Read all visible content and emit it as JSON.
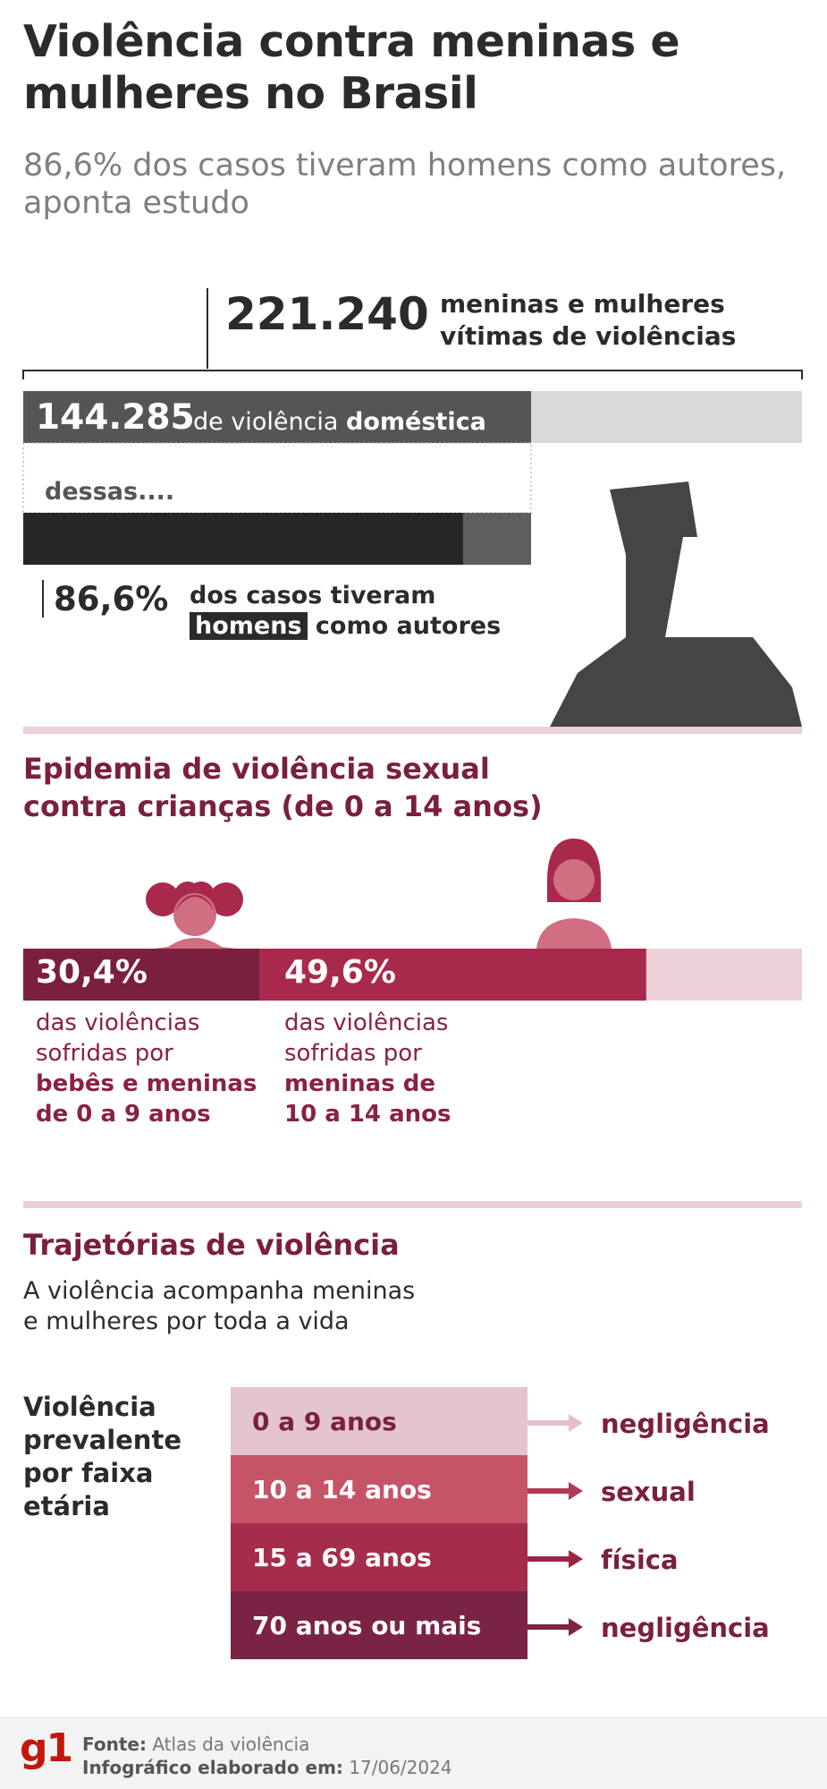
{
  "header": {
    "title": "Violência contra meninas e mulheres no Brasil",
    "subtitle": "86,6% dos casos tiveram homens como autores, aponta estudo"
  },
  "totals": {
    "total_value": "221.240",
    "total_label": "meninas e mulheres vítimas de violências",
    "domestic_value": "144.285",
    "domestic_label_pre": "de violência ",
    "domestic_label_bold": "doméstica",
    "dessas": "dessas....",
    "men_pct": "86,6%",
    "men_label_line1": "dos casos tiveram",
    "men_label_highlight": "homens",
    "men_label_rest": " como autores"
  },
  "sexual": {
    "title_line1": "Epidemia de violência sexual",
    "title_line2": "contra crianças (de 0 a 14 anos)",
    "group1": {
      "pct": "30,4%",
      "line1": "das violências",
      "line2": "sofridas por",
      "line3": "bebês e meninas",
      "line4": "de 0 a 9 anos"
    },
    "group2": {
      "pct": "49,6%",
      "line1": "das violências",
      "line2": "sofridas por",
      "line3": "meninas de",
      "line4": "10 a 14 anos"
    }
  },
  "trajectories": {
    "title": "Trajetórias de violência",
    "subtitle_line1": "A violência acompanha meninas",
    "subtitle_line2": "e mulheres por toda a vida",
    "prevalent_label": "Violência prevalente por faixa etária"
  },
  "footer": {
    "logo": "g1",
    "source_label": "Fonte:",
    "source_value": "Atlas da violência",
    "date_label": "Infográfico elaborado em:",
    "date_value": "17/06/2024"
  },
  "colors": {
    "dark_gray": "#555555",
    "black": "#2b2b2b",
    "light_gray": "#d9d9d9",
    "wine": "#7a1f3f",
    "crimson": "#a8294c",
    "pale_pink": "#ebd0d8",
    "pink_light": "#e3c4cf",
    "pink_mid": "#c65467",
    "red_mid": "#a52c4b",
    "wine_dark": "#7a2345"
  },
  "chart_data": [
    {
      "type": "bar",
      "categories": [
        "221.240",
        "144.285",
        "86,6%"
      ],
      "values": [
        221240,
        144285,
        86.6
      ]
    },
    {
      "type": "bar",
      "categories": [
        "30,4%",
        "49,6%"
      ],
      "values": [
        30.4,
        49.6
      ]
    },
    {
      "type": "table",
      "categories": [
        "0 a 9 anos",
        "10 a 14 anos",
        "15 a 69 anos",
        "70 anos ou mais"
      ],
      "values": [
        "negligência",
        "sexual",
        "física",
        "negligência"
      ]
    }
  ]
}
